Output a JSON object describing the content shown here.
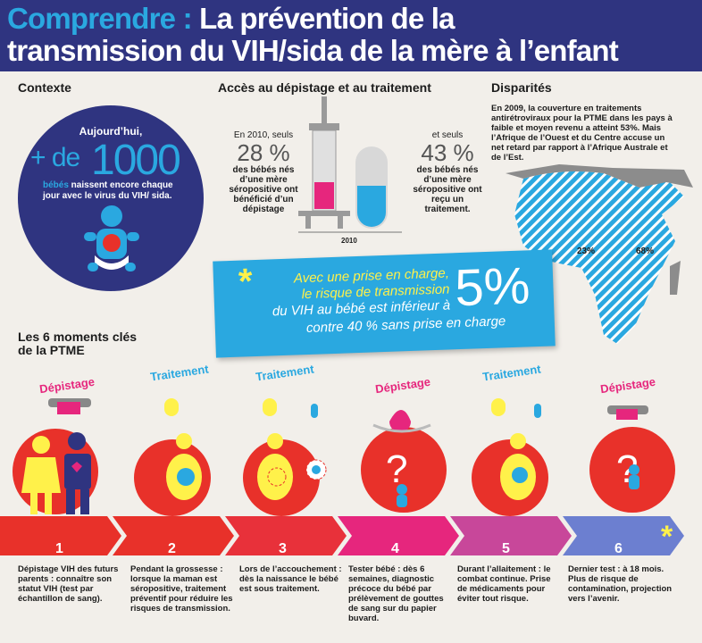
{
  "header": {
    "accent": "Comprendre :",
    "title_rest": " La prévention de la",
    "title_line2": "transmission du VIH/sida de la mère à l’enfant"
  },
  "contexte": {
    "title": "Contexte",
    "line1": "Aujourd’hui,",
    "plus_de": "+ de",
    "number": "1000",
    "babies": "bébés",
    "rest": " naissent encore chaque jour avec le virus du VIH/ sida."
  },
  "access": {
    "title": "Accès au dépistage et au traitement",
    "left_intro": "En 2010, seuls",
    "left_pct": "28 %",
    "left_text": "des bébés nés d’une mère séropositive ont bénéficié d’un dépistage",
    "right_intro": "et seuls",
    "right_pct": "43 %",
    "right_text": "des bébés nés d’une mère séropositive ont reçu un traitement.",
    "year": "2010"
  },
  "disparities": {
    "title": "Disparités",
    "text": "En 2009, la couverture en traitements antirétroviraux pour la PTME dans les pays à faible et moyen revenu a atteint 53%. Mais l’Afrique de l’Ouest et du Centre accuse un net retard par rapport à l’Afrique Australe et de l’Est.",
    "west_pct": "23%",
    "east_pct": "68%"
  },
  "banner": {
    "line1": "Avec une prise en charge,",
    "line2": "le risque de transmission",
    "line3": "du VIH au bébé est inférieur à",
    "big": "5%",
    "line4": "contre 40 % sans prise en charge"
  },
  "moments": {
    "title_l1": "Les 6 moments clés",
    "title_l2": "de la PTME",
    "steps": [
      {
        "tag": "Dépistage",
        "num": "1",
        "desc": "Dépistage VIH des futurs parents : connaître son statut VIH (test par échantillon de sang)."
      },
      {
        "tag": "Traitement",
        "num": "2",
        "desc": "Pendant la grossesse : lorsque la maman est séropositive, traitement préventif pour réduire les risques de transmission."
      },
      {
        "tag": "Traitement",
        "num": "3",
        "desc": "Lors de l’accouchement : dès la naissance le bébé est sous traitement."
      },
      {
        "tag": "Dépistage",
        "num": "4",
        "desc": "Tester bébé : dès 6 semaines, diagnostic précoce du bébé par prélèvement de gouttes de sang sur du papier buvard."
      },
      {
        "tag": "Traitement",
        "num": "5",
        "desc": "Durant l’allaitement : le combat continue. Prise de médicaments pour éviter tout risque."
      },
      {
        "tag": "Dépistage",
        "num": "6",
        "desc": "Dernier test : à 18 mois. Plus de risque de contamination, projection vers l’avenir."
      }
    ]
  },
  "colors": {
    "navy": "#2f3480",
    "cyan": "#2aa8e0",
    "red": "#e8312a",
    "pink": "#e6267d",
    "yellow": "#fff14a"
  }
}
